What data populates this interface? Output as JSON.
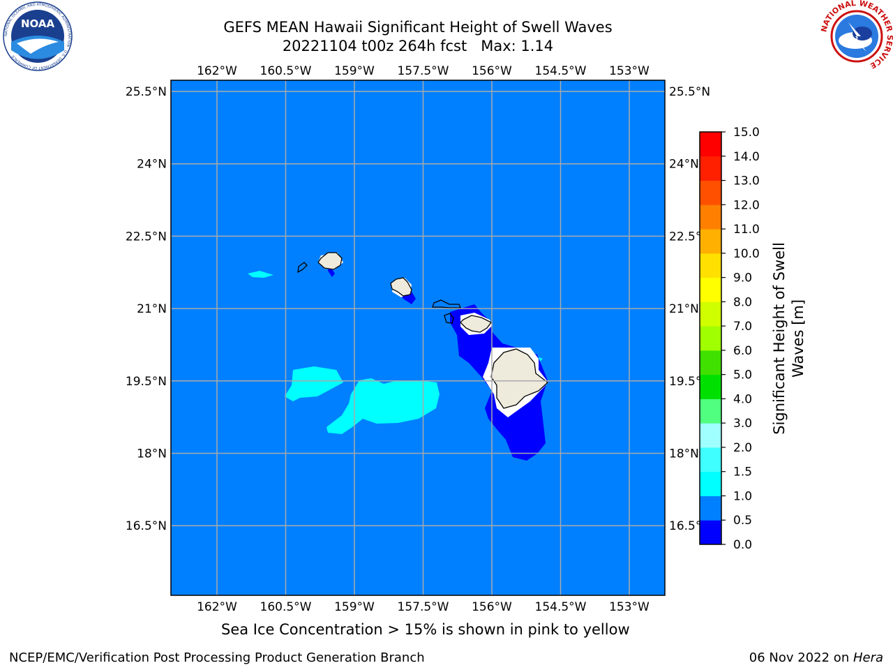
{
  "title": {
    "line1": "GEFS MEAN Hawaii Significant Height of Swell Waves",
    "line2": "20221104 t00z 264h fcst   Max: 1.14"
  },
  "note": "Sea Ice Concentration > 15% is shown in pink to yellow",
  "footer": {
    "left": "NCEP/EMC/Verification Post Processing Product Generation Branch",
    "right_date": "06 Nov 2022 on ",
    "right_host": "Hera"
  },
  "logos": {
    "noaa_text": "NOAA",
    "noaa_ring": "NATIONAL OCEANIC AND ATMOSPHERIC ADMINISTRATION · U.S. DEPARTMENT OF COMMERCE",
    "nws_ring": "NATIONAL WEATHER SERVICE"
  },
  "map": {
    "lon_ticks": [
      "162°W",
      "160.5°W",
      "159°W",
      "157.5°W",
      "156°W",
      "154.5°W",
      "153°W"
    ],
    "lat_ticks": [
      "25.5°N",
      "24°N",
      "22.5°N",
      "21°N",
      "19.5°N",
      "18°N",
      "16.5°N"
    ],
    "lon_values": [
      -162,
      -160.5,
      -159,
      -157.5,
      -156,
      -154.5,
      -153
    ],
    "lat_values": [
      25.5,
      24,
      22.5,
      21,
      19.5,
      18,
      16.5
    ],
    "background_color": "#0080ff",
    "land_color": "#eeeadc",
    "grid_color": "#aaaaaa"
  },
  "colorbar": {
    "label_line1": "Significant Height of Swell",
    "label_line2": "Waves [m]",
    "levels": [
      "0.0",
      "0.5",
      "1.0",
      "1.5",
      "2.0",
      "3.0",
      "4.0",
      "5.0",
      "6.0",
      "7.0",
      "8.0",
      "9.0",
      "10.0",
      "11.0",
      "12.0",
      "13.0",
      "14.0",
      "15.0"
    ],
    "colors": [
      "#0000ff",
      "#0080ff",
      "#00ffff",
      "#40ffff",
      "#a0ffff",
      "#50ff80",
      "#00e000",
      "#40e000",
      "#a0ff00",
      "#d0ff00",
      "#ffff00",
      "#ffe000",
      "#ffb000",
      "#ff8000",
      "#ff5000",
      "#ff2000",
      "#ff0000"
    ]
  }
}
